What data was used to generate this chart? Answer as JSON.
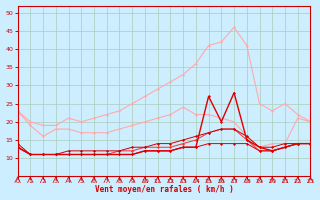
{
  "background_color": "#cceeff",
  "grid_color": "#aaccbb",
  "xlabel": "Vent moyen/en rafales ( km/h )",
  "xlim": [
    0,
    23
  ],
  "ylim": [
    5,
    52
  ],
  "yticks": [
    10,
    15,
    20,
    25,
    30,
    35,
    40,
    45,
    50
  ],
  "xticks": [
    0,
    1,
    2,
    3,
    4,
    5,
    6,
    7,
    8,
    9,
    10,
    11,
    12,
    13,
    14,
    15,
    16,
    17,
    18,
    19,
    20,
    21,
    22,
    23
  ],
  "series": [
    {
      "x": [
        0,
        1,
        2,
        3,
        4,
        5,
        6,
        7,
        8,
        9,
        10,
        11,
        12,
        13,
        14,
        15,
        16,
        17,
        18,
        19,
        20,
        21,
        22,
        23
      ],
      "y": [
        23,
        20,
        19,
        19,
        21,
        20,
        21,
        22,
        23,
        25,
        27,
        29,
        31,
        33,
        36,
        41,
        42,
        46,
        41,
        25,
        23,
        25,
        22,
        20
      ],
      "color": "#ffaaaa",
      "marker": "D",
      "markersize": 1.5,
      "linewidth": 0.8,
      "zorder": 2
    },
    {
      "x": [
        0,
        1,
        2,
        3,
        4,
        5,
        6,
        7,
        8,
        9,
        10,
        11,
        12,
        13,
        14,
        15,
        16,
        17,
        18,
        19,
        20,
        21,
        22,
        23
      ],
      "y": [
        23,
        19,
        16,
        18,
        18,
        17,
        17,
        17,
        18,
        19,
        20,
        21,
        22,
        24,
        22,
        22,
        21,
        20,
        16,
        13,
        14,
        14,
        21,
        20
      ],
      "color": "#ffaaaa",
      "marker": "D",
      "markersize": 1.5,
      "linewidth": 0.8,
      "zorder": 2
    },
    {
      "x": [
        0,
        1,
        2,
        3,
        4,
        5,
        6,
        7,
        8,
        9,
        10,
        11,
        12,
        13,
        14,
        15,
        16,
        17,
        18,
        19,
        20,
        21,
        22,
        23
      ],
      "y": [
        14,
        11,
        11,
        11,
        12,
        12,
        12,
        12,
        12,
        13,
        13,
        14,
        14,
        15,
        16,
        17,
        18,
        18,
        16,
        13,
        13,
        14,
        14,
        14
      ],
      "color": "#cc0000",
      "marker": "D",
      "markersize": 1.5,
      "linewidth": 0.7,
      "zorder": 4
    },
    {
      "x": [
        0,
        1,
        2,
        3,
        4,
        5,
        6,
        7,
        8,
        9,
        10,
        11,
        12,
        13,
        14,
        15,
        16,
        17,
        18,
        19,
        20,
        21,
        22,
        23
      ],
      "y": [
        13,
        11,
        11,
        11,
        11,
        11,
        11,
        11,
        11,
        11,
        12,
        12,
        12,
        13,
        13,
        14,
        14,
        14,
        14,
        12,
        12,
        13,
        14,
        14
      ],
      "color": "#dd0000",
      "marker": "D",
      "markersize": 1.5,
      "linewidth": 0.7,
      "zorder": 4
    },
    {
      "x": [
        0,
        1,
        2,
        3,
        4,
        5,
        6,
        7,
        8,
        9,
        10,
        11,
        12,
        13,
        14,
        15,
        16,
        17,
        18,
        19,
        20,
        21,
        22,
        23
      ],
      "y": [
        13,
        11,
        11,
        11,
        11,
        11,
        11,
        11,
        11,
        11,
        12,
        12,
        12,
        13,
        13,
        27,
        20,
        28,
        15,
        13,
        12,
        13,
        14,
        14
      ],
      "color": "#dd0000",
      "marker": "D",
      "markersize": 1.5,
      "linewidth": 1.0,
      "zorder": 5
    },
    {
      "x": [
        0,
        1,
        2,
        3,
        4,
        5,
        6,
        7,
        8,
        9,
        10,
        11,
        12,
        13,
        14,
        15,
        16,
        17,
        18,
        19,
        20,
        21,
        22,
        23
      ],
      "y": [
        13,
        11,
        11,
        11,
        11,
        11,
        11,
        11,
        12,
        12,
        13,
        13,
        13,
        14,
        15,
        17,
        18,
        18,
        15,
        12,
        12,
        13,
        14,
        14
      ],
      "color": "#ee3333",
      "marker": "D",
      "markersize": 1.5,
      "linewidth": 0.7,
      "zorder": 3
    }
  ]
}
